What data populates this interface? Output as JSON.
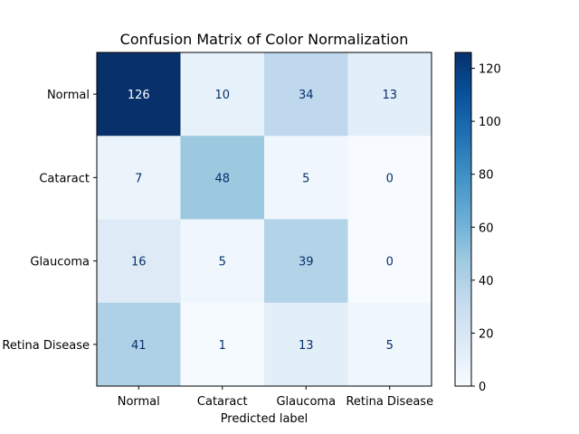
{
  "chart_data": {
    "type": "heatmap",
    "title": "Confusion Matrix of Color Normalization",
    "xlabel": "Predicted label",
    "ylabel": "",
    "x_categories": [
      "Normal",
      "Cataract",
      "Glaucoma",
      "Retina Disease"
    ],
    "y_categories": [
      "Normal",
      "Cataract",
      "Glaucoma",
      "Retina Disease"
    ],
    "values": [
      [
        126,
        10,
        34,
        13
      ],
      [
        7,
        48,
        5,
        0
      ],
      [
        16,
        5,
        39,
        0
      ],
      [
        41,
        1,
        13,
        5
      ]
    ],
    "colormap": "Blues",
    "colorbar": {
      "range": [
        0,
        126
      ],
      "ticks": [
        0,
        20,
        40,
        60,
        80,
        100,
        120
      ]
    },
    "text_colors": {
      "light": "#ffffff",
      "dark": "#08306b"
    }
  }
}
